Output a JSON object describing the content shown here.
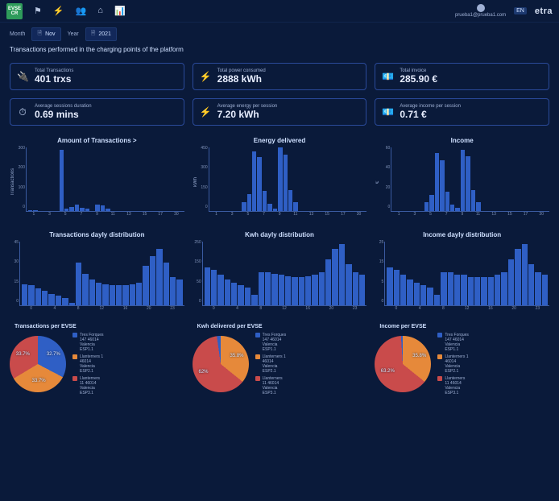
{
  "colors": {
    "bar": "#2f5fc5",
    "slice1": "#2f5fc5",
    "slice2": "#e6893a",
    "slice3": "#c94b4b",
    "axis": "#3a5aa0",
    "bg": "#0a1a3a"
  },
  "topbar": {
    "logo_text": "EVSE CR",
    "nav_icons": [
      "⚑",
      "⚡",
      "👥",
      "⌂",
      "📊"
    ],
    "user_email": "prueba1@prueba1.com",
    "lang": "EN",
    "brand": "etra"
  },
  "filters": {
    "month_label": "Month",
    "month_value": "Nov",
    "year_label": "Year",
    "year_value": "2021"
  },
  "subtitle": "Transactions performed in the charging points of the platform",
  "kpis": [
    {
      "icon": "🔌",
      "label": "Total Transactions",
      "value": "401 trxs"
    },
    {
      "icon": "⚡",
      "label": "Total power consumed",
      "value": "2888 kWh"
    },
    {
      "icon": "💶",
      "label": "Total invoice",
      "value": "285.90 €"
    },
    {
      "icon": "⏱",
      "label": "Average sessions duration",
      "value": "0.69 mins"
    },
    {
      "icon": "⚡",
      "label": "Average energy per session",
      "value": "7.20 kWh"
    },
    {
      "icon": "💶",
      "label": "Average income per session",
      "value": "0.71 €"
    }
  ],
  "bar_charts_row1": [
    {
      "title": "Amount of Transactions >",
      "ylabel": "Transactions",
      "ymax": 300,
      "yticks": [
        "300",
        "200",
        "100",
        "0"
      ],
      "xticks": [
        "1",
        "3",
        "5",
        "7",
        "9",
        "11",
        "13",
        "15",
        "17",
        "30"
      ],
      "values": [
        5,
        5,
        0,
        0,
        0,
        0,
        290,
        10,
        20,
        30,
        15,
        10,
        0,
        30,
        25,
        10,
        0,
        0,
        0,
        0,
        0,
        0,
        0,
        0,
        0,
        0,
        0,
        0,
        0,
        0
      ]
    },
    {
      "title": "Energy delivered",
      "ylabel": "kWh",
      "ymax": 450,
      "yticks": [
        "450",
        "300",
        "150",
        "0"
      ],
      "xticks": [
        "1",
        "3",
        "5",
        "7",
        "9",
        "11",
        "13",
        "15",
        "17",
        "30"
      ],
      "values": [
        0,
        0,
        0,
        0,
        0,
        0,
        60,
        120,
        420,
        380,
        140,
        50,
        20,
        450,
        400,
        150,
        60,
        0,
        0,
        0,
        0,
        0,
        0,
        0,
        0,
        0,
        0,
        0,
        0,
        0
      ]
    },
    {
      "title": "Income",
      "ylabel": "€",
      "ymax": 60,
      "yticks": [
        "60",
        "40",
        "20",
        "0"
      ],
      "xticks": [
        "1",
        "3",
        "5",
        "7",
        "9",
        "11",
        "13",
        "15",
        "17",
        "30"
      ],
      "values": [
        0,
        0,
        0,
        0,
        0,
        0,
        8,
        15,
        55,
        48,
        18,
        6,
        3,
        58,
        52,
        20,
        8,
        0,
        0,
        0,
        0,
        0,
        0,
        0,
        0,
        0,
        0,
        0,
        0,
        0
      ]
    }
  ],
  "bar_charts_row2": [
    {
      "title": "Transactions dayly distribution",
      "ylabel": "",
      "ymax": 45,
      "yticks": [
        "45",
        "30",
        "15",
        "0"
      ],
      "xticks": [
        "0",
        "4",
        "8",
        "12",
        "16",
        "20",
        "23"
      ],
      "values": [
        15,
        14,
        12,
        10,
        8,
        7,
        5,
        2,
        30,
        22,
        18,
        16,
        15,
        14,
        14,
        14,
        15,
        16,
        28,
        35,
        40,
        30,
        20,
        18
      ]
    },
    {
      "title": "Kwh dayly distribution",
      "ylabel": "",
      "ymax": 250,
      "yticks": [
        "250",
        "150",
        "50",
        "0"
      ],
      "values": [
        150,
        140,
        120,
        100,
        90,
        80,
        70,
        40,
        130,
        130,
        125,
        120,
        115,
        110,
        110,
        115,
        120,
        130,
        180,
        220,
        240,
        160,
        130,
        120
      ]
    },
    {
      "title": "Income dayly distribution",
      "ylabel": "",
      "ymax": 25,
      "yticks": [
        "25",
        "15",
        "5",
        "0"
      ],
      "values": [
        15,
        14,
        12,
        10,
        9,
        8,
        7,
        4,
        13,
        13,
        12,
        12,
        11,
        11,
        11,
        11,
        12,
        13,
        18,
        22,
        24,
        16,
        13,
        12
      ]
    }
  ],
  "pies": [
    {
      "title": "Transactions per EVSE",
      "slices": [
        {
          "pct": 32.7,
          "color": "#2f5fc5",
          "label": "32.7%"
        },
        {
          "pct": 33.7,
          "color": "#e6893a",
          "label": "33.7%"
        },
        {
          "pct": 33.7,
          "color": "#c94b4b",
          "label": "33.7%"
        }
      ],
      "legend": [
        {
          "color": "#2f5fc5",
          "text": "Tres Forques\n147 46014\nValencia\nESP1.1"
        },
        {
          "color": "#e6893a",
          "text": "Llanterners 1\n46014\nValencia\nESP2.1"
        },
        {
          "color": "#c94b4b",
          "text": "Llanterners\n11 46014\nValencia\nESP3.1"
        }
      ]
    },
    {
      "title": "Kwh delivered per EVSE",
      "slices": [
        {
          "pct": 35.8,
          "color": "#e6893a",
          "label": "35.8%"
        },
        {
          "pct": 62.0,
          "color": "#c94b4b",
          "label": "62%"
        },
        {
          "pct": 2.2,
          "color": "#2f5fc5",
          "label": ""
        }
      ],
      "legend": [
        {
          "color": "#2f5fc5",
          "text": "Tres Forques\n147 46014\nValencia\nESP1.1"
        },
        {
          "color": "#e6893a",
          "text": "Llanterners 1\n46014\nValencia\nESP2.1"
        },
        {
          "color": "#c94b4b",
          "text": "Llanterners\n11 46014\nValencia\nESP3.1"
        }
      ]
    },
    {
      "title": "Income per EVSE",
      "slices": [
        {
          "pct": 35.8,
          "color": "#e6893a",
          "label": "35.8%"
        },
        {
          "pct": 63.2,
          "color": "#c94b4b",
          "label": "63.2%"
        },
        {
          "pct": 1.0,
          "color": "#2f5fc5",
          "label": ""
        }
      ],
      "legend": [
        {
          "color": "#2f5fc5",
          "text": "Tres Forques\n147 46014\nValencia\nESP1.1"
        },
        {
          "color": "#e6893a",
          "text": "Llanterners 1\n46014\nValencia\nESP2.1"
        },
        {
          "color": "#c94b4b",
          "text": "Llanterners\n11 46014\nValencia\nESP3.1"
        }
      ]
    }
  ]
}
